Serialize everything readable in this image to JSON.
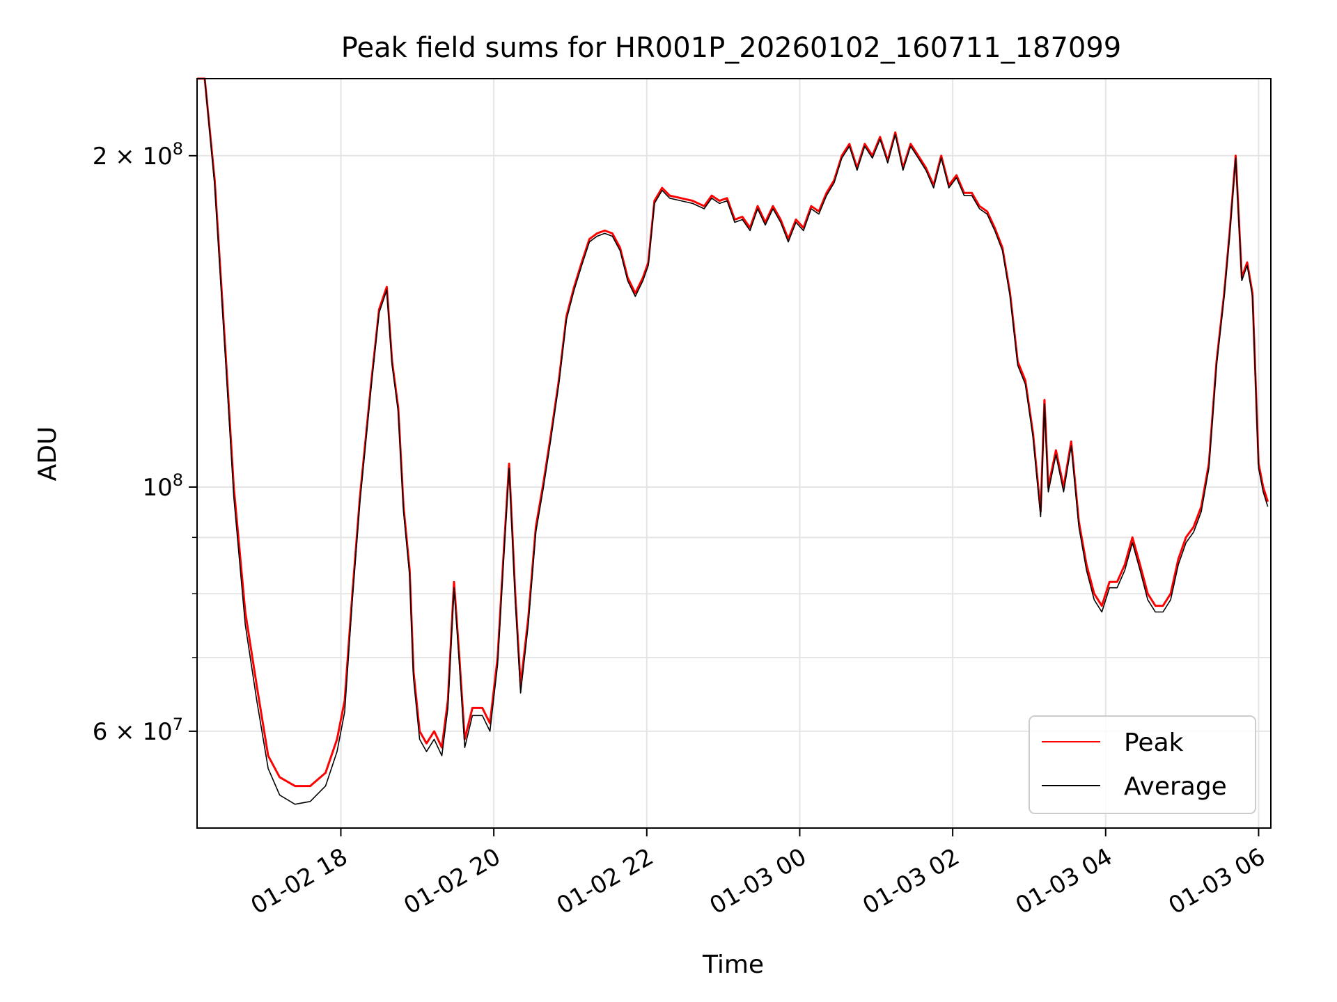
{
  "chart_data": {
    "type": "line",
    "title": "Peak field sums for HR001P_20260102_160711_187099",
    "xlabel": "Time",
    "ylabel": "ADU",
    "yscale": "log",
    "ylim": [
      49000000,
      235000000
    ],
    "xlim_hours": [
      16.12,
      30.16
    ],
    "grid": true,
    "legend_position": "lower-right",
    "x_ticks": [
      {
        "hour": 18,
        "label": "01-02 18"
      },
      {
        "hour": 20,
        "label": "01-02 20"
      },
      {
        "hour": 22,
        "label": "01-02 22"
      },
      {
        "hour": 24,
        "label": "01-03 00"
      },
      {
        "hour": 26,
        "label": "01-03 02"
      },
      {
        "hour": 28,
        "label": "01-03 04"
      },
      {
        "hour": 30,
        "label": "01-03 06"
      }
    ],
    "y_major_ticks": [
      {
        "value": 200000000,
        "base": "2 × 10",
        "exp": "8"
      },
      {
        "value": 100000000,
        "base": "10",
        "exp": "8"
      },
      {
        "value": 60000000,
        "base": "6 × 10",
        "exp": "7"
      }
    ],
    "y_minor_ticks": [
      70000000,
      80000000,
      90000000
    ],
    "series": [
      {
        "name": "Peak",
        "color": "#ff0000",
        "points": [
          [
            16.12,
            236000000
          ],
          [
            16.22,
            236000000
          ],
          [
            16.35,
            190000000
          ],
          [
            16.5,
            130000000
          ],
          [
            16.6,
            100000000
          ],
          [
            16.75,
            77000000
          ],
          [
            16.9,
            66000000
          ],
          [
            17.05,
            57000000
          ],
          [
            17.2,
            54500000
          ],
          [
            17.4,
            53500000
          ],
          [
            17.6,
            53500000
          ],
          [
            17.8,
            55000000
          ],
          [
            17.95,
            59000000
          ],
          [
            18.05,
            64000000
          ],
          [
            18.15,
            80000000
          ],
          [
            18.25,
            98000000
          ],
          [
            18.4,
            125000000
          ],
          [
            18.5,
            145000000
          ],
          [
            18.6,
            152000000
          ],
          [
            18.67,
            130000000
          ],
          [
            18.75,
            118000000
          ],
          [
            18.82,
            96000000
          ],
          [
            18.9,
            84000000
          ],
          [
            18.95,
            68000000
          ],
          [
            19.03,
            60000000
          ],
          [
            19.12,
            58500000
          ],
          [
            19.22,
            60000000
          ],
          [
            19.32,
            58000000
          ],
          [
            19.4,
            64000000
          ],
          [
            19.48,
            82000000
          ],
          [
            19.55,
            70000000
          ],
          [
            19.62,
            59000000
          ],
          [
            19.72,
            63000000
          ],
          [
            19.85,
            63000000
          ],
          [
            19.95,
            61000000
          ],
          [
            20.05,
            70000000
          ],
          [
            20.12,
            85000000
          ],
          [
            20.2,
            105000000
          ],
          [
            20.28,
            80000000
          ],
          [
            20.35,
            66000000
          ],
          [
            20.45,
            76000000
          ],
          [
            20.55,
            92000000
          ],
          [
            20.65,
            101000000
          ],
          [
            20.75,
            112000000
          ],
          [
            20.85,
            125000000
          ],
          [
            20.95,
            143000000
          ],
          [
            21.05,
            152000000
          ],
          [
            21.15,
            160000000
          ],
          [
            21.25,
            168000000
          ],
          [
            21.35,
            170000000
          ],
          [
            21.45,
            171000000
          ],
          [
            21.55,
            170000000
          ],
          [
            21.65,
            165000000
          ],
          [
            21.75,
            155000000
          ],
          [
            21.85,
            150000000
          ],
          [
            21.95,
            155000000
          ],
          [
            22.02,
            160000000
          ],
          [
            22.1,
            182000000
          ],
          [
            22.2,
            187000000
          ],
          [
            22.3,
            184000000
          ],
          [
            22.45,
            183000000
          ],
          [
            22.6,
            182000000
          ],
          [
            22.75,
            180000000
          ],
          [
            22.85,
            184000000
          ],
          [
            22.95,
            182000000
          ],
          [
            23.05,
            183000000
          ],
          [
            23.15,
            175000000
          ],
          [
            23.25,
            176000000
          ],
          [
            23.35,
            172000000
          ],
          [
            23.45,
            180000000
          ],
          [
            23.55,
            174000000
          ],
          [
            23.65,
            180000000
          ],
          [
            23.75,
            175000000
          ],
          [
            23.85,
            168000000
          ],
          [
            23.95,
            175000000
          ],
          [
            24.05,
            172000000
          ],
          [
            24.15,
            180000000
          ],
          [
            24.25,
            178000000
          ],
          [
            24.35,
            185000000
          ],
          [
            24.45,
            190000000
          ],
          [
            24.55,
            200000000
          ],
          [
            24.65,
            205000000
          ],
          [
            24.75,
            195000000
          ],
          [
            24.85,
            205000000
          ],
          [
            24.95,
            200000000
          ],
          [
            25.05,
            208000000
          ],
          [
            25.15,
            198000000
          ],
          [
            25.25,
            210000000
          ],
          [
            25.35,
            195000000
          ],
          [
            25.45,
            205000000
          ],
          [
            25.55,
            200000000
          ],
          [
            25.65,
            195000000
          ],
          [
            25.75,
            188000000
          ],
          [
            25.85,
            200000000
          ],
          [
            25.95,
            188000000
          ],
          [
            26.05,
            192000000
          ],
          [
            26.15,
            185000000
          ],
          [
            26.25,
            185000000
          ],
          [
            26.35,
            180000000
          ],
          [
            26.45,
            178000000
          ],
          [
            26.55,
            172000000
          ],
          [
            26.65,
            165000000
          ],
          [
            26.75,
            150000000
          ],
          [
            26.85,
            130000000
          ],
          [
            26.95,
            125000000
          ],
          [
            27.05,
            112000000
          ],
          [
            27.15,
            95000000
          ],
          [
            27.2,
            120000000
          ],
          [
            27.25,
            100000000
          ],
          [
            27.35,
            108000000
          ],
          [
            27.45,
            100000000
          ],
          [
            27.55,
            110000000
          ],
          [
            27.65,
            93000000
          ],
          [
            27.75,
            85000000
          ],
          [
            27.85,
            80000000
          ],
          [
            27.95,
            78000000
          ],
          [
            28.05,
            82000000
          ],
          [
            28.15,
            82000000
          ],
          [
            28.25,
            85000000
          ],
          [
            28.35,
            90000000
          ],
          [
            28.45,
            85000000
          ],
          [
            28.55,
            80000000
          ],
          [
            28.65,
            78000000
          ],
          [
            28.75,
            78000000
          ],
          [
            28.85,
            80000000
          ],
          [
            28.95,
            86000000
          ],
          [
            29.05,
            90000000
          ],
          [
            29.15,
            92000000
          ],
          [
            29.25,
            96000000
          ],
          [
            29.35,
            105000000
          ],
          [
            29.45,
            130000000
          ],
          [
            29.55,
            150000000
          ],
          [
            29.62,
            170000000
          ],
          [
            29.7,
            200000000
          ],
          [
            29.78,
            155000000
          ],
          [
            29.85,
            160000000
          ],
          [
            29.92,
            150000000
          ],
          [
            30.0,
            105000000
          ],
          [
            30.06,
            100000000
          ],
          [
            30.12,
            97000000
          ]
        ]
      },
      {
        "name": "Average",
        "color": "#000000",
        "points": [
          [
            16.12,
            236000000
          ],
          [
            16.22,
            236000000
          ],
          [
            16.35,
            188000000
          ],
          [
            16.5,
            128000000
          ],
          [
            16.6,
            98000000
          ],
          [
            16.75,
            75000000
          ],
          [
            16.9,
            64000000
          ],
          [
            17.05,
            55500000
          ],
          [
            17.2,
            52500000
          ],
          [
            17.4,
            51500000
          ],
          [
            17.6,
            51800000
          ],
          [
            17.8,
            53500000
          ],
          [
            17.95,
            57500000
          ],
          [
            18.05,
            62500000
          ],
          [
            18.15,
            79000000
          ],
          [
            18.25,
            97000000
          ],
          [
            18.4,
            124000000
          ],
          [
            18.5,
            144000000
          ],
          [
            18.6,
            151000000
          ],
          [
            18.67,
            129000000
          ],
          [
            18.75,
            117000000
          ],
          [
            18.82,
            95000000
          ],
          [
            18.9,
            83000000
          ],
          [
            18.95,
            67000000
          ],
          [
            19.03,
            59000000
          ],
          [
            19.12,
            57500000
          ],
          [
            19.22,
            59000000
          ],
          [
            19.32,
            57000000
          ],
          [
            19.4,
            63000000
          ],
          [
            19.48,
            81000000
          ],
          [
            19.55,
            69000000
          ],
          [
            19.62,
            58000000
          ],
          [
            19.72,
            62000000
          ],
          [
            19.85,
            62000000
          ],
          [
            19.95,
            60000000
          ],
          [
            20.05,
            69000000
          ],
          [
            20.12,
            84000000
          ],
          [
            20.2,
            104000000
          ],
          [
            20.28,
            79000000
          ],
          [
            20.35,
            65000000
          ],
          [
            20.45,
            75000000
          ],
          [
            20.55,
            91000000
          ],
          [
            20.65,
            100000000
          ],
          [
            20.75,
            111000000
          ],
          [
            20.85,
            124000000
          ],
          [
            20.95,
            142000000
          ],
          [
            21.05,
            151000000
          ],
          [
            21.15,
            159000000
          ],
          [
            21.25,
            167000000
          ],
          [
            21.35,
            169000000
          ],
          [
            21.45,
            170000000
          ],
          [
            21.55,
            169000000
          ],
          [
            21.65,
            164000000
          ],
          [
            21.75,
            154000000
          ],
          [
            21.85,
            149000000
          ],
          [
            21.95,
            154000000
          ],
          [
            22.02,
            159000000
          ],
          [
            22.1,
            181000000
          ],
          [
            22.2,
            186000000
          ],
          [
            22.3,
            183000000
          ],
          [
            22.45,
            182000000
          ],
          [
            22.6,
            181000000
          ],
          [
            22.75,
            179000000
          ],
          [
            22.85,
            183000000
          ],
          [
            22.95,
            181000000
          ],
          [
            23.05,
            182000000
          ],
          [
            23.15,
            174000000
          ],
          [
            23.25,
            175000000
          ],
          [
            23.35,
            171000000
          ],
          [
            23.45,
            179000000
          ],
          [
            23.55,
            173000000
          ],
          [
            23.65,
            179000000
          ],
          [
            23.75,
            174000000
          ],
          [
            23.85,
            167000000
          ],
          [
            23.95,
            174000000
          ],
          [
            24.05,
            171000000
          ],
          [
            24.15,
            179000000
          ],
          [
            24.25,
            177000000
          ],
          [
            24.35,
            184000000
          ],
          [
            24.45,
            189000000
          ],
          [
            24.55,
            199000000
          ],
          [
            24.65,
            204000000
          ],
          [
            24.75,
            194000000
          ],
          [
            24.85,
            204000000
          ],
          [
            24.95,
            199000000
          ],
          [
            25.05,
            207000000
          ],
          [
            25.15,
            197000000
          ],
          [
            25.25,
            209000000
          ],
          [
            25.35,
            194000000
          ],
          [
            25.45,
            204000000
          ],
          [
            25.55,
            199000000
          ],
          [
            25.65,
            194000000
          ],
          [
            25.75,
            187000000
          ],
          [
            25.85,
            199000000
          ],
          [
            25.95,
            187000000
          ],
          [
            26.05,
            191000000
          ],
          [
            26.15,
            184000000
          ],
          [
            26.25,
            184000000
          ],
          [
            26.35,
            179000000
          ],
          [
            26.45,
            177000000
          ],
          [
            26.55,
            171000000
          ],
          [
            26.65,
            164000000
          ],
          [
            26.75,
            149000000
          ],
          [
            26.85,
            129000000
          ],
          [
            26.95,
            124000000
          ],
          [
            27.05,
            111000000
          ],
          [
            27.15,
            94000000
          ],
          [
            27.2,
            119000000
          ],
          [
            27.25,
            99000000
          ],
          [
            27.35,
            107000000
          ],
          [
            27.45,
            99000000
          ],
          [
            27.55,
            109000000
          ],
          [
            27.65,
            92000000
          ],
          [
            27.75,
            84000000
          ],
          [
            27.85,
            79000000
          ],
          [
            27.95,
            77000000
          ],
          [
            28.05,
            81000000
          ],
          [
            28.15,
            81000000
          ],
          [
            28.25,
            84000000
          ],
          [
            28.35,
            89000000
          ],
          [
            28.45,
            84000000
          ],
          [
            28.55,
            79000000
          ],
          [
            28.65,
            77000000
          ],
          [
            28.75,
            77000000
          ],
          [
            28.85,
            79000000
          ],
          [
            28.95,
            85000000
          ],
          [
            29.05,
            89000000
          ],
          [
            29.15,
            91000000
          ],
          [
            29.25,
            95000000
          ],
          [
            29.35,
            104000000
          ],
          [
            29.45,
            129000000
          ],
          [
            29.55,
            149000000
          ],
          [
            29.62,
            169000000
          ],
          [
            29.7,
            199000000
          ],
          [
            29.78,
            154000000
          ],
          [
            29.85,
            159000000
          ],
          [
            29.92,
            149000000
          ],
          [
            30.0,
            104000000
          ],
          [
            30.06,
            99000000
          ],
          [
            30.12,
            96000000
          ]
        ]
      }
    ]
  }
}
